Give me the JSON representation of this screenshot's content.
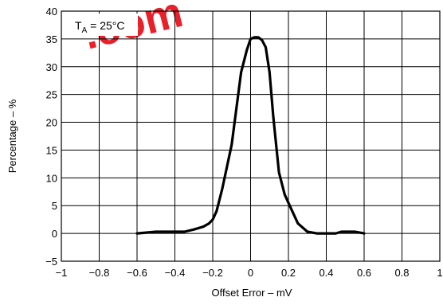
{
  "chart_data": {
    "type": "line",
    "title": "",
    "xlabel": "Offset Error – mV",
    "ylabel": "Percentage – %",
    "xlim": [
      -1,
      1
    ],
    "ylim": [
      -5,
      40
    ],
    "xticks": [
      -1,
      -0.8,
      -0.6,
      -0.4,
      -0.2,
      0,
      0.2,
      0.4,
      0.6,
      0.8,
      1
    ],
    "xtick_labels": [
      "−1",
      "−0.8",
      "−0.6",
      "−0.4",
      "−0.2",
      "0",
      "0.2",
      "0.4",
      "0.6",
      "0.8",
      "1"
    ],
    "yticks": [
      -5,
      0,
      5,
      10,
      15,
      20,
      25,
      30,
      35,
      40
    ],
    "ytick_labels": [
      "−5",
      "0",
      "5",
      "10",
      "15",
      "20",
      "25",
      "30",
      "35",
      "40"
    ],
    "grid": true,
    "annotation": {
      "prefix": "T",
      "subscript": "A",
      "suffix": " = 25°C"
    },
    "watermark_text": ".com",
    "series": [
      {
        "x": [
          -0.6,
          -0.5,
          -0.45,
          -0.35,
          -0.3,
          -0.25,
          -0.22,
          -0.2,
          -0.18,
          -0.15,
          -0.1,
          -0.05,
          -0.02,
          0.0,
          0.02,
          0.04,
          0.06,
          0.08,
          0.1,
          0.12,
          0.15,
          0.18,
          0.2,
          0.22,
          0.25,
          0.3,
          0.35,
          0.4,
          0.45,
          0.48,
          0.5,
          0.55,
          0.6
        ],
        "y": [
          0,
          0.3,
          0.3,
          0.3,
          0.7,
          1.2,
          1.8,
          2.5,
          4,
          8,
          16,
          29,
          33,
          35,
          35.3,
          35.3,
          34.8,
          33.5,
          29,
          21,
          11,
          7,
          5.5,
          4,
          1.8,
          0.3,
          0,
          0,
          0,
          0.3,
          0.3,
          0.3,
          0
        ]
      }
    ]
  }
}
